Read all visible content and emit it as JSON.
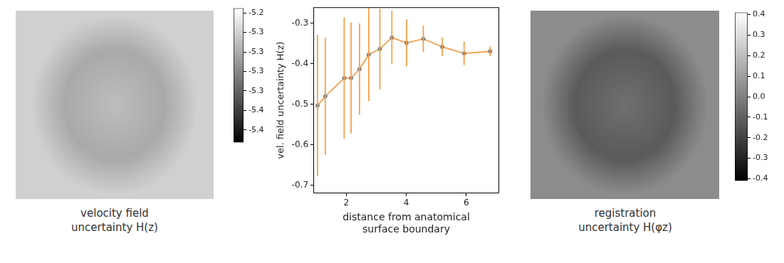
{
  "chart_data": [
    {
      "type": "image",
      "caption": "velocity field uncertainty H(z)",
      "colorbar_lim": [
        -5.391,
        -5.219
      ],
      "colorbar_ticks": [
        {
          "value": -5.225,
          "label": "-5.2"
        },
        {
          "value": -5.25,
          "label": "-5.3"
        },
        {
          "value": -5.275,
          "label": "-5.3"
        },
        {
          "value": -5.3,
          "label": "-5.3"
        },
        {
          "value": -5.325,
          "label": "-5.3"
        },
        {
          "value": -5.35,
          "label": "-5.4"
        },
        {
          "value": -5.375,
          "label": "-5.4"
        }
      ]
    },
    {
      "type": "line",
      "x_label": "distance from anatomical surface boundary",
      "y_label": "vel. field uncertainty H(z)",
      "x": [
        1.04,
        1.3,
        1.93,
        2.16,
        2.44,
        2.75,
        3.12,
        3.52,
        4.01,
        4.57,
        5.2,
        5.93,
        6.8
      ],
      "series": [
        {
          "color": "#f5a04c",
          "marker": "o",
          "line_style": "solid",
          "values": [
            -0.503,
            -0.48,
            -0.435,
            -0.435,
            -0.413,
            -0.377,
            -0.363,
            -0.335,
            -0.348,
            -0.338,
            -0.358,
            -0.374,
            -0.369
          ],
          "errors": [
            0.175,
            0.145,
            0.15,
            0.137,
            0.113,
            0.115,
            0.1,
            0.066,
            0.058,
            0.033,
            0.023,
            0.029,
            0.012
          ]
        }
      ],
      "xlim": [
        0.9,
        7.1
      ],
      "ylim": [
        -0.72,
        -0.26
      ],
      "xticks": [
        2,
        4,
        6
      ],
      "yticks": [
        -0.7,
        -0.6,
        -0.5,
        -0.4,
        -0.3
      ],
      "grid": false
    },
    {
      "type": "image",
      "caption": "registration uncertainty H(φz)",
      "colorbar_lim": [
        -0.41,
        0.41
      ],
      "colorbar_ticks": [
        0.4,
        0.3,
        0.2,
        0.1,
        {
          "value": 0,
          "label": "0.0"
        },
        -0.1,
        -0.2,
        -0.3,
        -0.4
      ]
    }
  ]
}
